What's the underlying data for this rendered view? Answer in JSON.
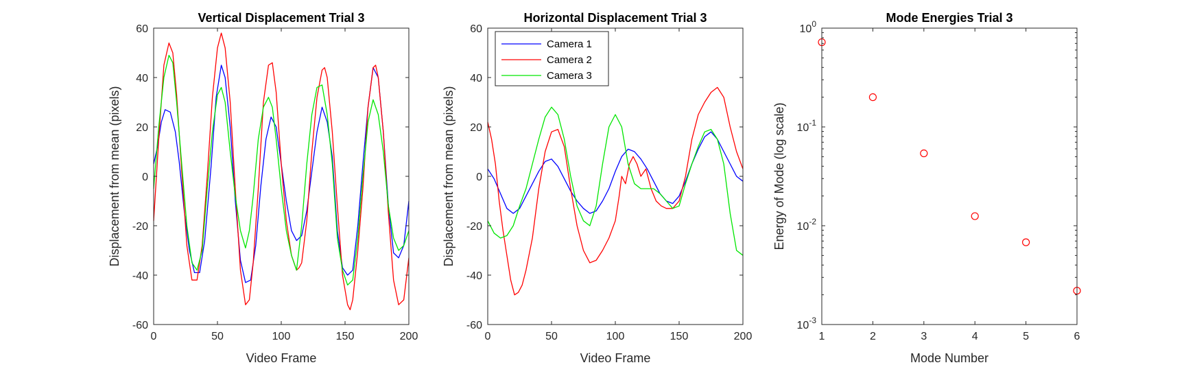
{
  "chart_data": [
    {
      "type": "line",
      "title": "Vertical Displacement Trial 3",
      "xlabel": "Video Frame",
      "ylabel": "Displacement from mean (pixels)",
      "xlim": [
        0,
        200
      ],
      "ylim": [
        -60,
        60
      ],
      "xticks": [
        "0",
        "50",
        "100",
        "150",
        "200"
      ],
      "yticks": [
        "-60",
        "-40",
        "-20",
        "0",
        "20",
        "40",
        "60"
      ],
      "grid": false,
      "series": [
        {
          "color": "#0000ff",
          "x": [
            0,
            3,
            6,
            9,
            13,
            17,
            20,
            24,
            28,
            32,
            36,
            40,
            45,
            49,
            53,
            56,
            60,
            64,
            68,
            72,
            76,
            80,
            84,
            88,
            92,
            96,
            100,
            104,
            108,
            112,
            116,
            120,
            124,
            128,
            132,
            136,
            140,
            144,
            148,
            152,
            156,
            160,
            164,
            168,
            172,
            176,
            180,
            184,
            188,
            192,
            196,
            200
          ],
          "y": [
            5,
            12,
            22,
            27,
            26,
            18,
            6,
            -14,
            -30,
            -39,
            -39,
            -26,
            4,
            32,
            45,
            40,
            20,
            -10,
            -34,
            -43,
            -42,
            -28,
            -4,
            15,
            24,
            20,
            5,
            -10,
            -22,
            -26,
            -24,
            -14,
            2,
            18,
            28,
            22,
            8,
            -22,
            -37,
            -40,
            -38,
            -20,
            5,
            28,
            44,
            40,
            18,
            -12,
            -31,
            -33,
            -28,
            -10
          ]
        },
        {
          "color": "#ff0000",
          "x": [
            0,
            4,
            8,
            12,
            15,
            18,
            22,
            26,
            30,
            34,
            38,
            42,
            46,
            50,
            53,
            56,
            60,
            64,
            68,
            72,
            75,
            78,
            82,
            86,
            90,
            93,
            96,
            100,
            104,
            108,
            112,
            114,
            116,
            120,
            124,
            128,
            132,
            134,
            136,
            140,
            144,
            148,
            152,
            154,
            156,
            160,
            164,
            168,
            172,
            174,
            176,
            180,
            184,
            188,
            192,
            196,
            200
          ],
          "y": [
            -18,
            15,
            45,
            54,
            50,
            33,
            2,
            -28,
            -42,
            -42,
            -28,
            0,
            32,
            52,
            58,
            52,
            30,
            -5,
            -38,
            -52,
            -50,
            -35,
            -5,
            30,
            45,
            46,
            34,
            5,
            -18,
            -32,
            -38,
            -37,
            -35,
            -18,
            10,
            32,
            43,
            44,
            40,
            18,
            -12,
            -40,
            -52,
            -54,
            -50,
            -30,
            -5,
            28,
            44,
            45,
            40,
            18,
            -15,
            -42,
            -52,
            -50,
            -33
          ]
        },
        {
          "color": "#00e600",
          "x": [
            0,
            4,
            8,
            12,
            15,
            18,
            22,
            26,
            30,
            34,
            38,
            42,
            46,
            50,
            53,
            56,
            60,
            64,
            68,
            72,
            75,
            78,
            82,
            86,
            90,
            93,
            96,
            100,
            104,
            108,
            112,
            116,
            120,
            124,
            128,
            132,
            136,
            140,
            144,
            148,
            152,
            156,
            160,
            164,
            168,
            172,
            176,
            180,
            184,
            188,
            192,
            196,
            200
          ],
          "y": [
            -5,
            20,
            40,
            49,
            46,
            30,
            5,
            -20,
            -35,
            -38,
            -30,
            -5,
            18,
            33,
            36,
            30,
            10,
            -8,
            -22,
            -29,
            -22,
            -8,
            15,
            28,
            32,
            28,
            15,
            -5,
            -22,
            -32,
            -38,
            -20,
            5,
            25,
            36,
            37,
            25,
            5,
            -25,
            -38,
            -44,
            -42,
            -25,
            0,
            22,
            31,
            25,
            10,
            -12,
            -25,
            -30,
            -28,
            -22
          ]
        }
      ]
    },
    {
      "type": "line",
      "title": "Horizontal Displacement Trial 3",
      "xlabel": "Video Frame",
      "ylabel": "Displacement from mean (pixels)",
      "xlim": [
        0,
        200
      ],
      "ylim": [
        -60,
        60
      ],
      "xticks": [
        "0",
        "50",
        "100",
        "150",
        "200"
      ],
      "yticks": [
        "-60",
        "-40",
        "-20",
        "0",
        "20",
        "40",
        "60"
      ],
      "grid": false,
      "legend": {
        "placement": "top-left",
        "entries": [
          "Camera 1",
          "Camera 2",
          "Camera 3"
        ]
      },
      "series": [
        {
          "name": "Camera 1",
          "color": "#0000ff",
          "x": [
            0,
            5,
            10,
            15,
            20,
            25,
            30,
            35,
            40,
            45,
            50,
            55,
            60,
            65,
            70,
            75,
            80,
            85,
            90,
            95,
            100,
            105,
            110,
            115,
            120,
            125,
            130,
            135,
            140,
            145,
            150,
            155,
            160,
            165,
            170,
            175,
            180,
            185,
            190,
            195,
            200
          ],
          "y": [
            3,
            -1,
            -7,
            -13,
            -15,
            -13,
            -8,
            -3,
            2,
            6,
            7,
            4,
            -1,
            -6,
            -10,
            -13,
            -15,
            -14,
            -10,
            -5,
            2,
            8,
            11,
            10,
            7,
            3,
            -2,
            -7,
            -10,
            -11,
            -8,
            -2,
            5,
            11,
            16,
            18,
            15,
            10,
            5,
            0,
            -2
          ]
        },
        {
          "name": "Camera 2",
          "color": "#ff0000",
          "x": [
            0,
            3,
            6,
            9,
            12,
            15,
            18,
            21,
            24,
            27,
            30,
            35,
            40,
            45,
            50,
            55,
            60,
            65,
            70,
            75,
            80,
            85,
            90,
            95,
            100,
            103,
            105,
            108,
            111,
            114,
            117,
            120,
            124,
            128,
            132,
            136,
            140,
            145,
            150,
            155,
            160,
            165,
            170,
            175,
            180,
            185,
            190,
            195,
            200
          ],
          "y": [
            22,
            15,
            5,
            -10,
            -22,
            -32,
            -42,
            -48,
            -47,
            -44,
            -38,
            -25,
            -5,
            10,
            18,
            19,
            12,
            -5,
            -20,
            -30,
            -35,
            -34,
            -30,
            -25,
            -18,
            -8,
            0,
            -3,
            5,
            8,
            5,
            0,
            3,
            -5,
            -10,
            -12,
            -13,
            -13,
            -10,
            0,
            15,
            25,
            30,
            34,
            36,
            32,
            20,
            10,
            3
          ]
        },
        {
          "name": "Camera 3",
          "color": "#00e600",
          "x": [
            0,
            5,
            10,
            15,
            20,
            25,
            30,
            35,
            40,
            45,
            50,
            55,
            60,
            65,
            70,
            75,
            80,
            85,
            90,
            95,
            100,
            105,
            110,
            115,
            120,
            125,
            130,
            135,
            140,
            145,
            150,
            155,
            160,
            165,
            170,
            175,
            180,
            185,
            190,
            195,
            200
          ],
          "y": [
            -18,
            -23,
            -25,
            -24,
            -20,
            -12,
            -5,
            5,
            15,
            24,
            28,
            25,
            15,
            0,
            -12,
            -18,
            -20,
            -12,
            5,
            20,
            25,
            20,
            5,
            -3,
            -5,
            -5,
            -5,
            -7,
            -10,
            -13,
            -12,
            -3,
            5,
            12,
            18,
            19,
            15,
            5,
            -15,
            -30,
            -32
          ]
        }
      ]
    },
    {
      "type": "scatter",
      "title": "Mode Energies Trial 3",
      "xlabel": "Mode Number",
      "ylabel": "Energy of Mode (log scale)",
      "yscale": "log",
      "xlim": [
        1,
        6
      ],
      "ylim": [
        0.001,
        1
      ],
      "xticks": [
        "1",
        "2",
        "3",
        "4",
        "5",
        "6"
      ],
      "yticks": [
        {
          "base": "10",
          "exp": "0"
        },
        {
          "base": "10",
          "exp": "-1"
        },
        {
          "base": "10",
          "exp": "-2"
        },
        {
          "base": "10",
          "exp": "-3"
        }
      ],
      "grid": false,
      "marker": "circle",
      "color": "#ff0000",
      "x": [
        1,
        2,
        3,
        4,
        5,
        6
      ],
      "y": [
        0.72,
        0.2,
        0.054,
        0.0125,
        0.0068,
        0.0022
      ]
    }
  ]
}
